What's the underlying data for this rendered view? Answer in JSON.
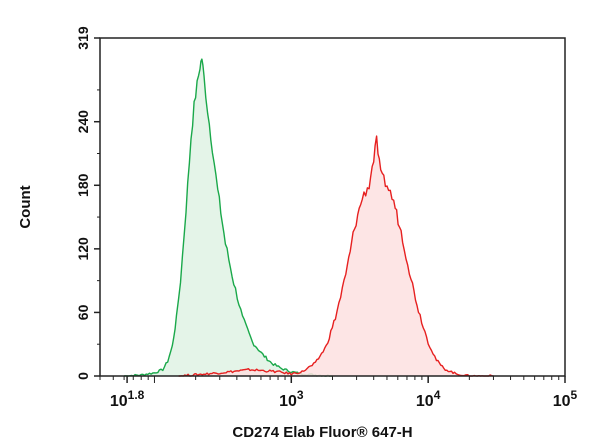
{
  "chart_data": {
    "type": "area",
    "title": "",
    "xlabel": "CD274 Elab Fluor® 647-H",
    "ylabel": "Count",
    "x_scale": "log",
    "xlim": [
      40,
      100000
    ],
    "ylim": [
      0,
      319
    ],
    "grid": false,
    "legend": "none",
    "y_ticks": [
      {
        "value": 0,
        "label": "0"
      },
      {
        "value": 60,
        "label": "60"
      },
      {
        "value": 120,
        "label": "120"
      },
      {
        "value": 180,
        "label": "180"
      },
      {
        "value": 240,
        "label": "240"
      },
      {
        "value": 319,
        "label": "319"
      }
    ],
    "x_ticks": [
      {
        "value": 63.1,
        "base": "10",
        "exp": "1.8"
      },
      {
        "value": 1000,
        "base": "10",
        "exp": "3"
      },
      {
        "value": 10000,
        "base": "10",
        "exp": "4"
      },
      {
        "value": 100000,
        "base": "10",
        "exp": "5"
      }
    ],
    "series": [
      {
        "color": "#1aa84a",
        "fill": "#dff2e4",
        "points": [
          [
            60,
            0
          ],
          [
            80,
            1
          ],
          [
            100,
            3
          ],
          [
            115,
            6
          ],
          [
            125,
            14
          ],
          [
            135,
            28
          ],
          [
            145,
            55
          ],
          [
            155,
            90
          ],
          [
            165,
            135
          ],
          [
            175,
            180
          ],
          [
            185,
            225
          ],
          [
            195,
            255
          ],
          [
            205,
            275
          ],
          [
            215,
            292
          ],
          [
            222,
            300
          ],
          [
            230,
            282
          ],
          [
            245,
            250
          ],
          [
            265,
            215
          ],
          [
            290,
            175
          ],
          [
            330,
            125
          ],
          [
            380,
            88
          ],
          [
            440,
            55
          ],
          [
            520,
            32
          ],
          [
            620,
            20
          ],
          [
            720,
            12
          ],
          [
            850,
            7
          ],
          [
            1000,
            4
          ],
          [
            1200,
            2
          ],
          [
            1500,
            1
          ],
          [
            2000,
            0
          ]
        ]
      },
      {
        "color": "#e62020",
        "fill": "#fde0e0",
        "points": [
          [
            150,
            0
          ],
          [
            300,
            3
          ],
          [
            500,
            6
          ],
          [
            800,
            4
          ],
          [
            1000,
            2
          ],
          [
            1200,
            4
          ],
          [
            1500,
            12
          ],
          [
            1800,
            28
          ],
          [
            2100,
            55
          ],
          [
            2500,
            95
          ],
          [
            2900,
            140
          ],
          [
            3300,
            168
          ],
          [
            3700,
            180
          ],
          [
            4000,
            205
          ],
          [
            4200,
            222
          ],
          [
            4500,
            190
          ],
          [
            5000,
            180
          ],
          [
            5600,
            165
          ],
          [
            6500,
            130
          ],
          [
            7500,
            92
          ],
          [
            8500,
            62
          ],
          [
            10000,
            32
          ],
          [
            11500,
            15
          ],
          [
            13000,
            7
          ],
          [
            16000,
            2
          ],
          [
            20000,
            0
          ],
          [
            30000,
            0
          ]
        ]
      }
    ]
  }
}
